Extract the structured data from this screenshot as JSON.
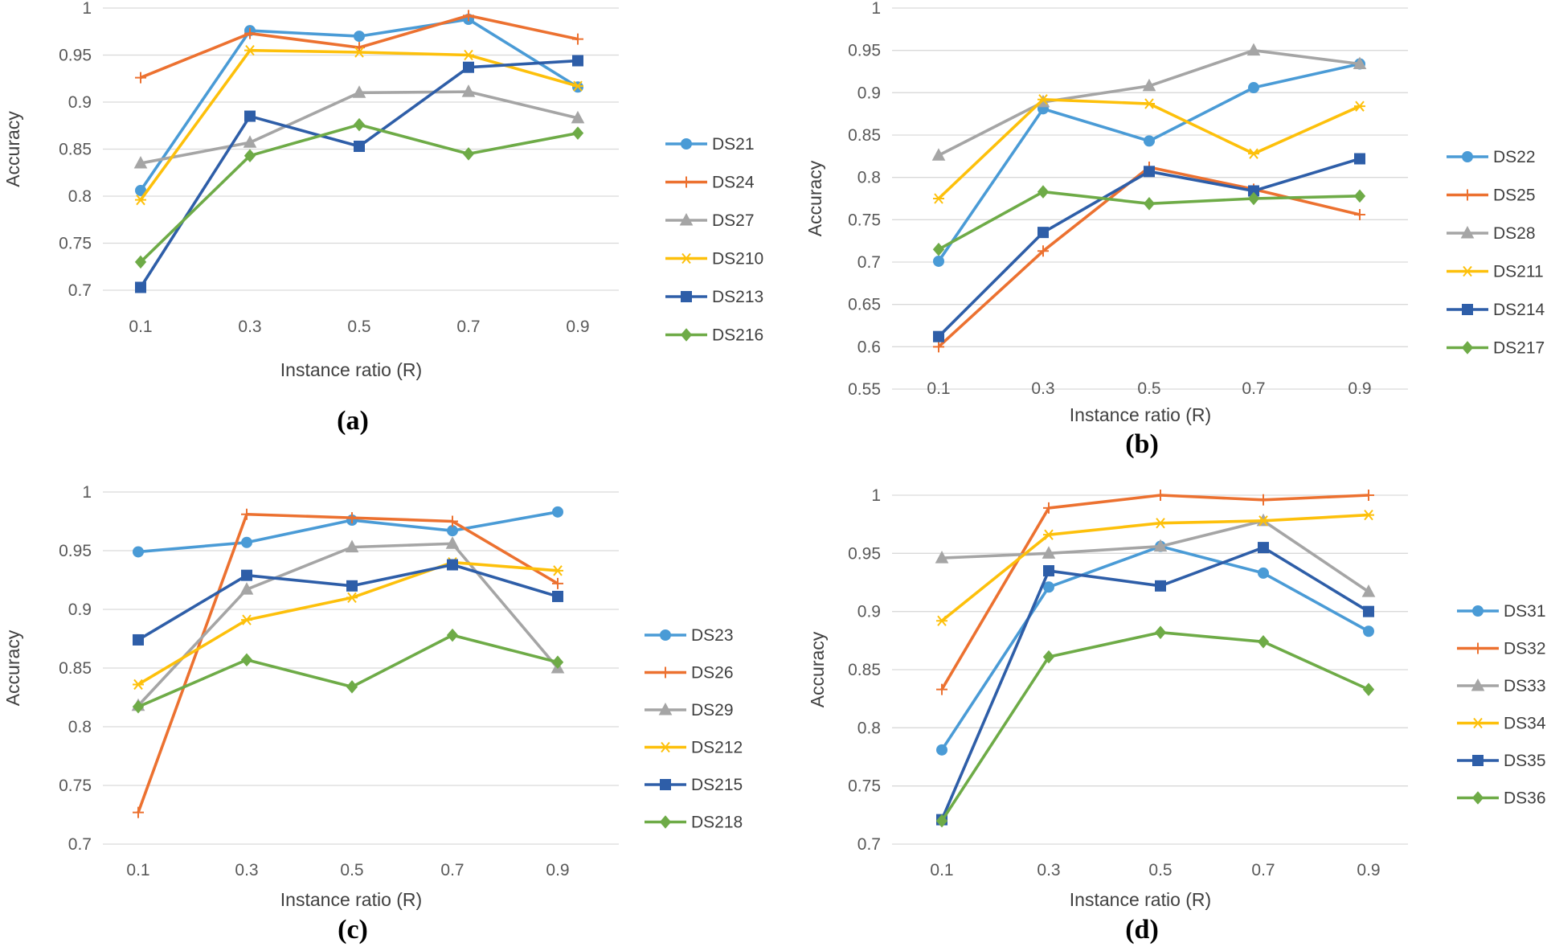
{
  "colors": {
    "blue_light": "#4a9bd6",
    "orange": "#ec7130",
    "gray": "#a5a5a5",
    "yellow": "#fdc00b",
    "blue_dark": "#2e5ea8",
    "green": "#6eab47"
  },
  "chart_data": [
    {
      "type": "line",
      "caption": "(a)",
      "xlabel": "Instance ratio (R)",
      "ylabel": "Accuracy",
      "categories": [
        "0.1",
        "0.3",
        "0.5",
        "0.7",
        "0.9"
      ],
      "yticks": [
        "0.7",
        "0.75",
        "0.8",
        "0.85",
        "0.9",
        "0.95",
        "1"
      ],
      "ylim": [
        0.7,
        1
      ],
      "grid": true,
      "legend_position": "right",
      "series": [
        {
          "name": "DS21",
          "color": "#4a9bd6",
          "marker": "circle",
          "values": [
            0.806,
            0.976,
            0.97,
            0.988,
            0.916
          ]
        },
        {
          "name": "DS24",
          "color": "#ec7130",
          "marker": "plus",
          "values": [
            0.926,
            0.973,
            0.958,
            0.992,
            0.967
          ]
        },
        {
          "name": "DS27",
          "color": "#a5a5a5",
          "marker": "triangle",
          "values": [
            0.835,
            0.857,
            0.91,
            0.911,
            0.883
          ]
        },
        {
          "name": "DS210",
          "color": "#fdc00b",
          "marker": "star",
          "values": [
            0.796,
            0.955,
            0.953,
            0.95,
            0.917
          ]
        },
        {
          "name": "DS213",
          "color": "#2e5ea8",
          "marker": "square",
          "values": [
            0.703,
            0.885,
            0.853,
            0.937,
            0.944
          ]
        },
        {
          "name": "DS216",
          "color": "#6eab47",
          "marker": "diamond",
          "values": [
            0.73,
            0.843,
            0.876,
            0.845,
            0.867
          ]
        }
      ]
    },
    {
      "type": "line",
      "caption": "(b)",
      "xlabel": "Instance ratio (R)",
      "ylabel": "Accuracy",
      "categories": [
        "0.1",
        "0.3",
        "0.5",
        "0.7",
        "0.9"
      ],
      "yticks": [
        "0.55",
        "0.6",
        "0.65",
        "0.7",
        "0.75",
        "0.8",
        "0.85",
        "0.9",
        "0.95",
        "1"
      ],
      "ylim": [
        0.55,
        1
      ],
      "grid": true,
      "legend_position": "right",
      "series": [
        {
          "name": "DS22",
          "color": "#4a9bd6",
          "marker": "circle",
          "values": [
            0.701,
            0.881,
            0.843,
            0.906,
            0.934
          ]
        },
        {
          "name": "DS25",
          "color": "#ec7130",
          "marker": "plus",
          "values": [
            0.6,
            0.713,
            0.812,
            0.786,
            0.756
          ]
        },
        {
          "name": "DS28",
          "color": "#a5a5a5",
          "marker": "triangle",
          "values": [
            0.826,
            0.889,
            0.908,
            0.95,
            0.934
          ]
        },
        {
          "name": "DS211",
          "color": "#fdc00b",
          "marker": "star",
          "values": [
            0.775,
            0.892,
            0.887,
            0.828,
            0.884
          ]
        },
        {
          "name": "DS214",
          "color": "#2e5ea8",
          "marker": "square",
          "values": [
            0.612,
            0.735,
            0.807,
            0.784,
            0.822
          ]
        },
        {
          "name": "DS217",
          "color": "#6eab47",
          "marker": "diamond",
          "values": [
            0.715,
            0.783,
            0.769,
            0.775,
            0.778
          ]
        }
      ]
    },
    {
      "type": "line",
      "caption": "(c)",
      "xlabel": "Instance ratio (R)",
      "ylabel": "Accuracy",
      "categories": [
        "0.1",
        "0.3",
        "0.5",
        "0.7",
        "0.9"
      ],
      "yticks": [
        "0.7",
        "0.75",
        "0.8",
        "0.85",
        "0.9",
        "0.95",
        "1"
      ],
      "ylim": [
        0.7,
        1
      ],
      "grid": true,
      "legend_position": "right",
      "series": [
        {
          "name": "DS23",
          "color": "#4a9bd6",
          "marker": "circle",
          "values": [
            0.949,
            0.957,
            0.976,
            0.967,
            0.983
          ]
        },
        {
          "name": "DS26",
          "color": "#ec7130",
          "marker": "plus",
          "values": [
            0.727,
            0.981,
            0.978,
            0.975,
            0.922
          ]
        },
        {
          "name": "DS29",
          "color": "#a5a5a5",
          "marker": "triangle",
          "values": [
            0.818,
            0.917,
            0.953,
            0.956,
            0.85
          ]
        },
        {
          "name": "DS212",
          "color": "#fdc00b",
          "marker": "star",
          "values": [
            0.836,
            0.891,
            0.91,
            0.94,
            0.933
          ]
        },
        {
          "name": "DS215",
          "color": "#2e5ea8",
          "marker": "square",
          "values": [
            0.874,
            0.929,
            0.92,
            0.938,
            0.911
          ]
        },
        {
          "name": "DS218",
          "color": "#6eab47",
          "marker": "diamond",
          "values": [
            0.817,
            0.857,
            0.834,
            0.878,
            0.855
          ]
        }
      ]
    },
    {
      "type": "line",
      "caption": "(d)",
      "xlabel": "Instance ratio (R)",
      "ylabel": "Accuracy",
      "categories": [
        "0.1",
        "0.3",
        "0.5",
        "0.7",
        "0.9"
      ],
      "yticks": [
        "0.7",
        "0.75",
        "0.8",
        "0.85",
        "0.9",
        "0.95",
        "1"
      ],
      "ylim": [
        0.7,
        1
      ],
      "grid": true,
      "legend_position": "right",
      "series": [
        {
          "name": "DS31",
          "color": "#4a9bd6",
          "marker": "circle",
          "values": [
            0.781,
            0.921,
            0.956,
            0.933,
            0.883
          ]
        },
        {
          "name": "DS32",
          "color": "#ec7130",
          "marker": "plus",
          "values": [
            0.833,
            0.989,
            1.0,
            0.996,
            1.0
          ]
        },
        {
          "name": "DS33",
          "color": "#a5a5a5",
          "marker": "triangle",
          "values": [
            0.946,
            0.95,
            0.956,
            0.978,
            0.917
          ]
        },
        {
          "name": "DS34",
          "color": "#fdc00b",
          "marker": "star",
          "values": [
            0.892,
            0.966,
            0.976,
            0.978,
            0.983
          ]
        },
        {
          "name": "DS35",
          "color": "#2e5ea8",
          "marker": "square",
          "values": [
            0.721,
            0.935,
            0.922,
            0.955,
            0.9
          ]
        },
        {
          "name": "DS36",
          "color": "#6eab47",
          "marker": "diamond",
          "values": [
            0.72,
            0.861,
            0.882,
            0.874,
            0.833
          ]
        }
      ]
    }
  ]
}
